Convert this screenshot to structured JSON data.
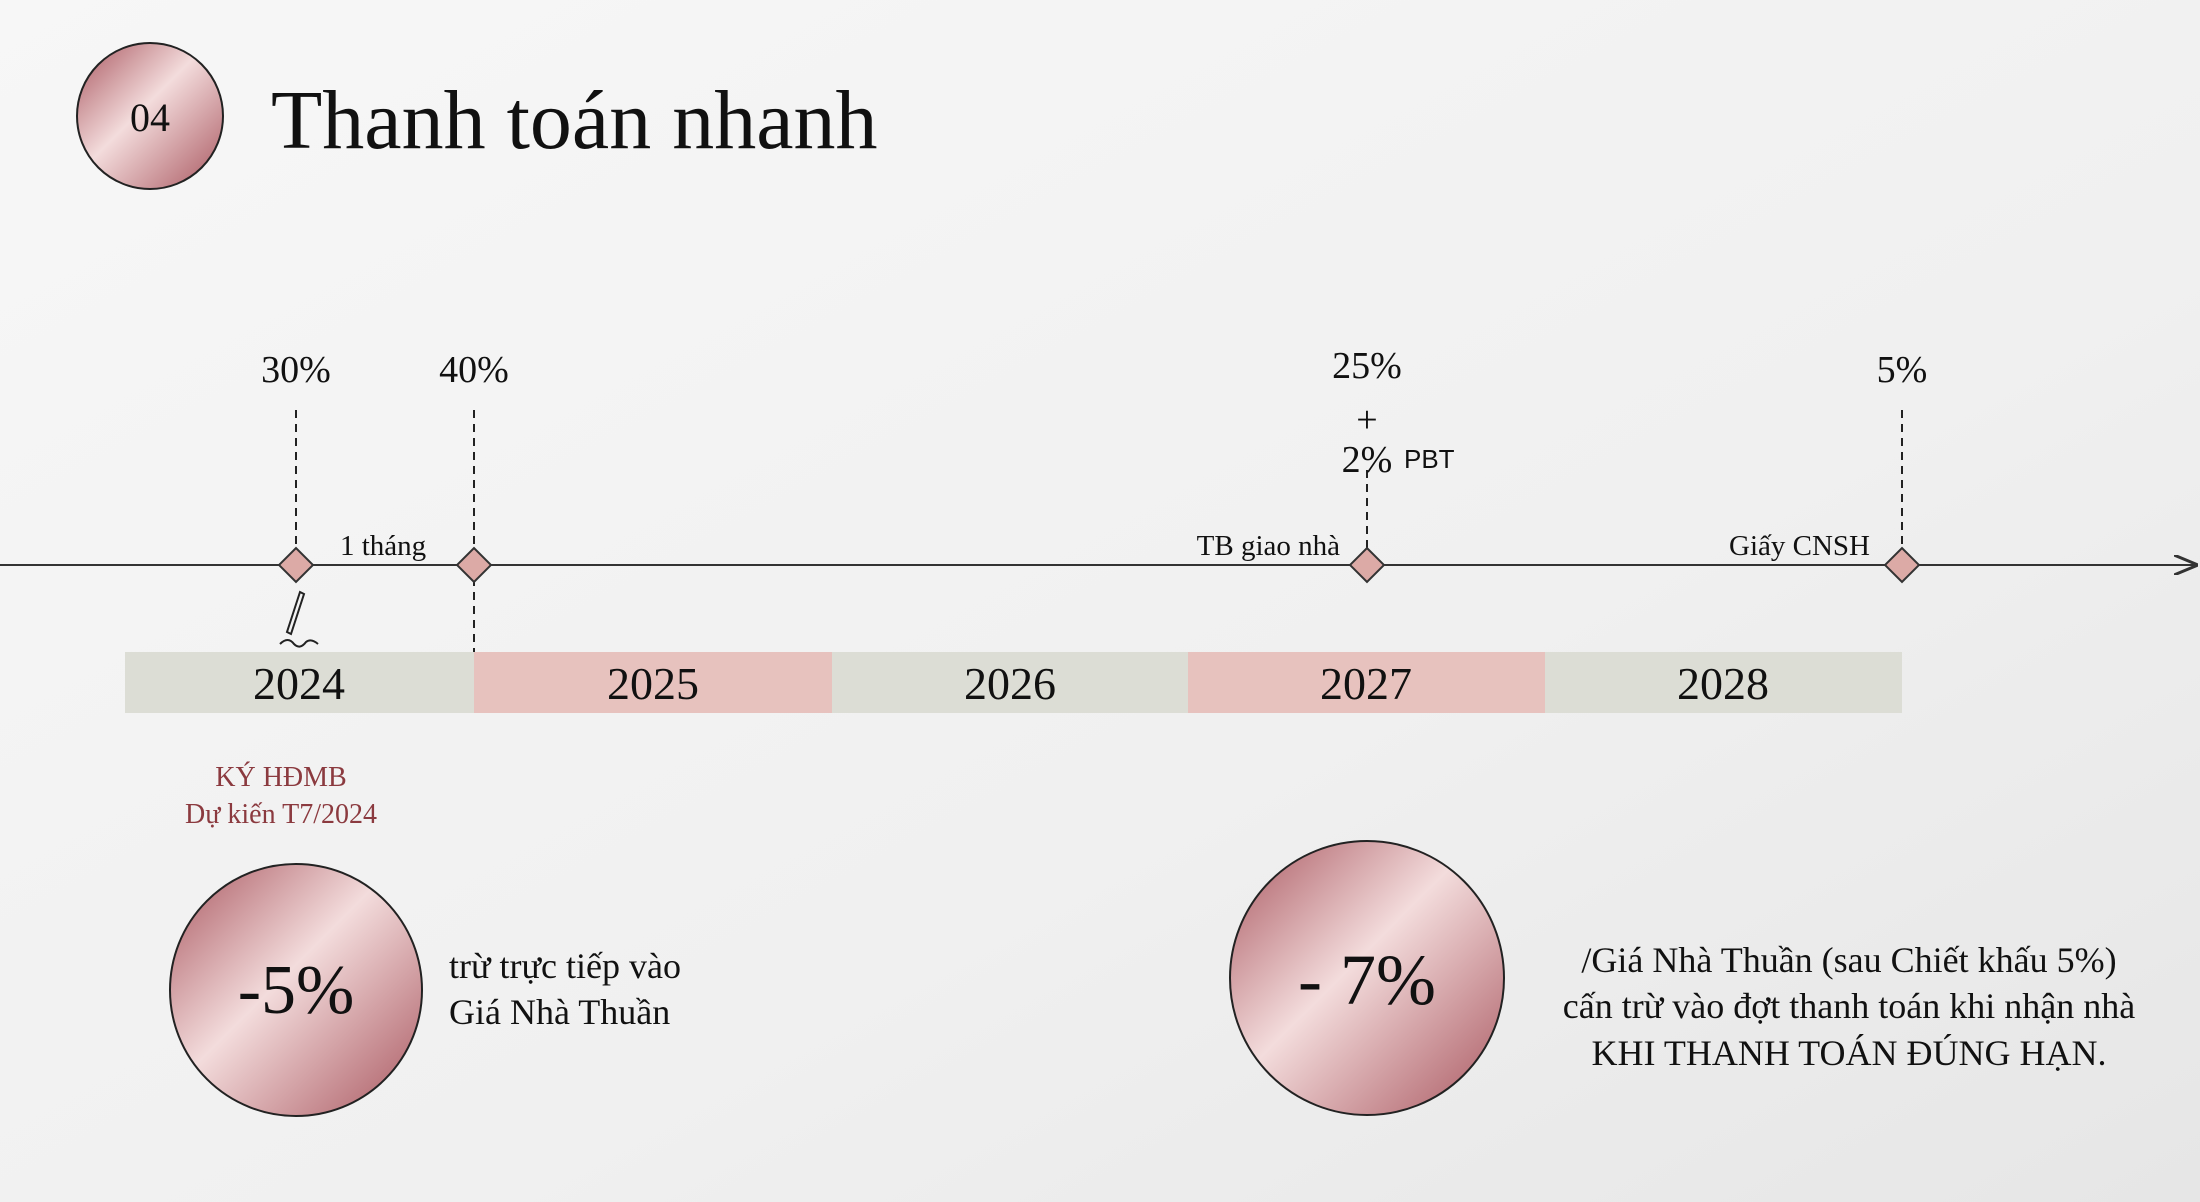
{
  "header": {
    "number": "04",
    "title": "Thanh toán nhanh"
  },
  "milestones": [
    {
      "percent": "30%"
    },
    {
      "percent": "40%",
      "label": "1 tháng"
    },
    {
      "percent": "25%",
      "plus": "+",
      "extra": "2%",
      "extra_note": "PBT",
      "label": "TB giao nhà"
    },
    {
      "percent": "5%",
      "label": "Giấy CNSH"
    }
  ],
  "years": [
    "2024",
    "2025",
    "2026",
    "2027",
    "2028"
  ],
  "signing": {
    "title": "KÝ HĐMB",
    "date": "Dự kiến T7/2024"
  },
  "discounts": [
    {
      "value": "-5%",
      "lines": [
        "trừ trực tiếp vào",
        "Giá Nhà Thuần"
      ]
    },
    {
      "value": "- 7%",
      "lines": [
        "/Giá Nhà Thuần (sau Chiết khấu 5%)",
        "cấn trừ vào đợt thanh toán khi nhận nhà",
        "KHI THANH TOÁN ĐÚNG HẠN."
      ]
    }
  ]
}
